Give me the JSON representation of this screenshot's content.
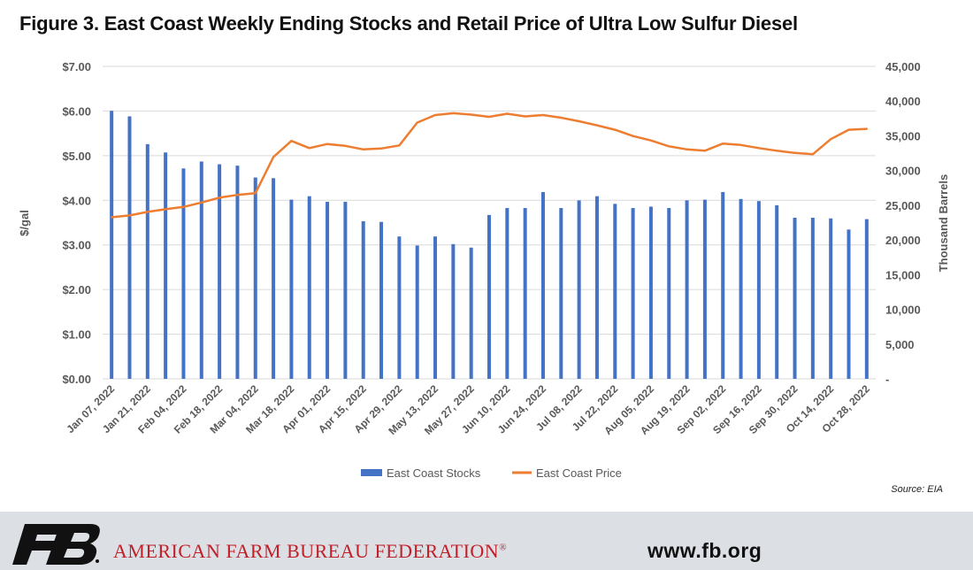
{
  "title": "Figure 3. East Coast Weekly Ending Stocks and Retail Price of Ultra Low Sulfur Diesel",
  "source": "Source: EIA",
  "footer": {
    "org_name": "AMERICAN FARM BUREAU FEDERATION",
    "org_mark": "®",
    "website": "www.fb.org",
    "logo_text": "FB"
  },
  "colors": {
    "stocks": "#4472c4",
    "price": "#ed7d31",
    "grid": "#d9d9d9",
    "axis_text": "#595959",
    "footer_bg": "#dcdfe3",
    "brand_red": "#c0202a"
  },
  "chart_data": {
    "type": "bar+line",
    "x_labels_shown": [
      "Jan 07, 2022",
      "Jan 21, 2022",
      "Feb 04, 2022",
      "Feb 18, 2022",
      "Mar 04, 2022",
      "Mar 18, 2022",
      "Apr 01, 2022",
      "Apr 15, 2022",
      "Apr 29, 2022",
      "May 13, 2022",
      "May 27, 2022",
      "Jun 10, 2022",
      "Jun 24, 2022",
      "Jul 08, 2022",
      "Jul 22, 2022",
      "Aug 05, 2022",
      "Aug 19, 2022",
      "Sep 02, 2022",
      "Sep 16, 2022",
      "Sep 30, 2022",
      "Oct 14, 2022",
      "Oct 28, 2022"
    ],
    "left_axis": {
      "label": "$/gal",
      "range": [
        0,
        7
      ],
      "ticks": [
        "$0.00",
        "$1.00",
        "$2.00",
        "$3.00",
        "$4.00",
        "$5.00",
        "$6.00",
        "$7.00"
      ]
    },
    "right_axis": {
      "label": "Thousand Barrels",
      "range": [
        0,
        45000
      ],
      "ticks": [
        "-",
        "5,000",
        "10,000",
        "15,000",
        "20,000",
        "25,000",
        "30,000",
        "35,000",
        "40,000",
        "45,000"
      ]
    },
    "grid": true,
    "legend_position": "bottom",
    "series": [
      {
        "name": "East Coast Stocks",
        "type": "bar",
        "axis": "right",
        "values": [
          38600,
          37800,
          33800,
          32600,
          30300,
          31300,
          30900,
          30700,
          29000,
          28900,
          25800,
          26300,
          25500,
          25500,
          22700,
          22600,
          20500,
          19200,
          20500,
          19400,
          18900,
          23600,
          24600,
          24600,
          26900,
          24600,
          25700,
          26300,
          25200,
          24600,
          24800,
          24600,
          25700,
          25800,
          26900,
          25900,
          25600,
          25000,
          23200,
          23200,
          23100,
          21500,
          23000
        ]
      },
      {
        "name": "East Coast Price",
        "type": "line",
        "axis": "left",
        "values": [
          3.62,
          3.66,
          3.74,
          3.8,
          3.85,
          3.95,
          4.06,
          4.12,
          4.16,
          4.97,
          5.33,
          5.17,
          5.26,
          5.22,
          5.14,
          5.16,
          5.23,
          5.74,
          5.91,
          5.95,
          5.92,
          5.87,
          5.94,
          5.88,
          5.91,
          5.85,
          5.77,
          5.68,
          5.58,
          5.44,
          5.34,
          5.21,
          5.14,
          5.11,
          5.27,
          5.24,
          5.17,
          5.11,
          5.06,
          5.03,
          5.37,
          5.58,
          5.6
        ]
      }
    ]
  }
}
